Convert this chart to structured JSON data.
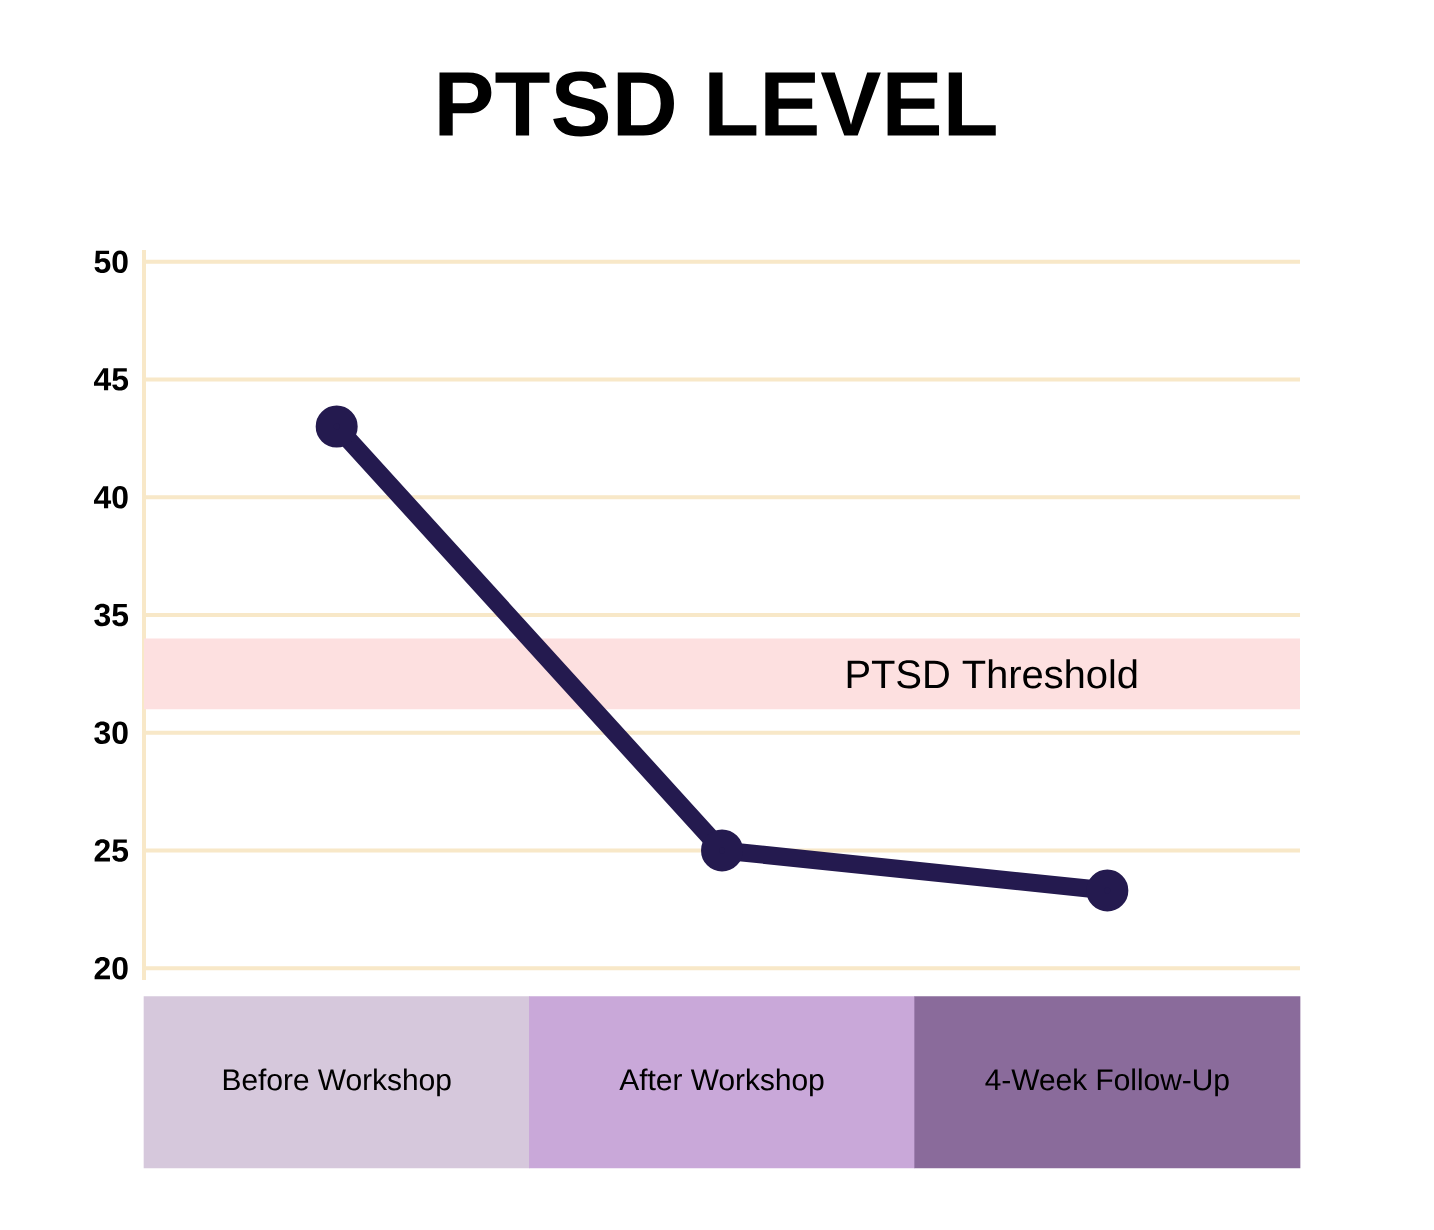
{
  "chart_data": {
    "type": "line",
    "title": "PTSD LEVEL",
    "categories": [
      "Before Workshop",
      "After Workshop",
      "4-Week Follow-Up"
    ],
    "series": [
      {
        "color": "#241a4f",
        "values": [
          43,
          25,
          23.3
        ]
      }
    ],
    "ylim": [
      19.5,
      50.5
    ],
    "yticks": [
      20,
      25,
      30,
      35,
      40,
      45,
      50
    ],
    "grid": "y",
    "marker": "circle",
    "line_style": "solid",
    "bands": [
      {
        "axis": "y",
        "from": 31,
        "to": 34,
        "label": "PTSD Threshold",
        "color": "#fde0e0"
      }
    ]
  }
}
